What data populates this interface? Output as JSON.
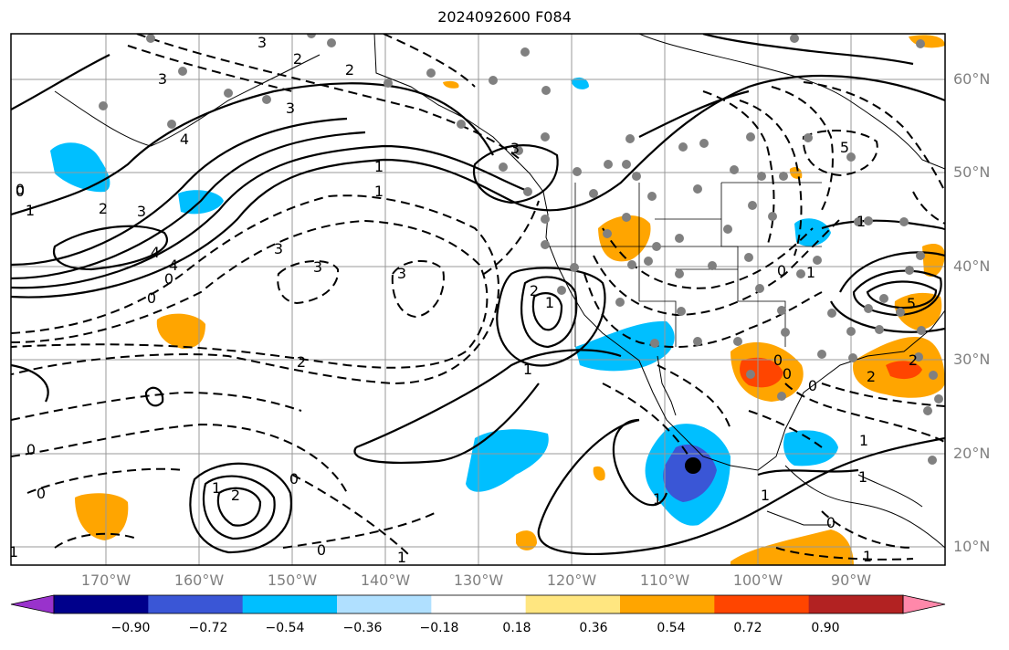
{
  "title": "2024092600 F084",
  "map": {
    "lat_labels": [
      "60°N",
      "50°N",
      "40°N",
      "30°N",
      "20°N",
      "10°N"
    ],
    "lon_labels": [
      "170°W",
      "160°W",
      "150°W",
      "140°W",
      "130°W",
      "120°W",
      "110°W",
      "100°W",
      "90°W"
    ],
    "contour_labels": [
      "3",
      "2",
      "2",
      "3",
      "3",
      "4",
      "1",
      "1",
      "3",
      "3",
      "2",
      "1",
      "4",
      "0",
      "3",
      "5",
      "1",
      "1",
      "2",
      "3",
      "4",
      "0",
      "0",
      "3",
      "2",
      "1",
      "0",
      "0",
      "1",
      "0",
      "1",
      "1",
      "2",
      "1",
      "2",
      "1",
      "1",
      "0",
      "2",
      "0",
      "0",
      "0",
      "1",
      "1",
      "0",
      "1",
      "5",
      "0",
      "0"
    ],
    "gridlines": true,
    "projection_note": ""
  },
  "colorbar": {
    "ticks": [
      "−0.90",
      "−0.72",
      "−0.54",
      "−0.36",
      "−0.18",
      "0.18",
      "0.36",
      "0.54",
      "0.72",
      "0.90"
    ],
    "colors": [
      "#9932cc",
      "#00008b",
      "#3a56d6",
      "#00bfff",
      "#b0e0ff",
      "#ffffff",
      "#ffe680",
      "#ffa500",
      "#ff4500",
      "#b22222",
      "#ff88aa"
    ]
  }
}
